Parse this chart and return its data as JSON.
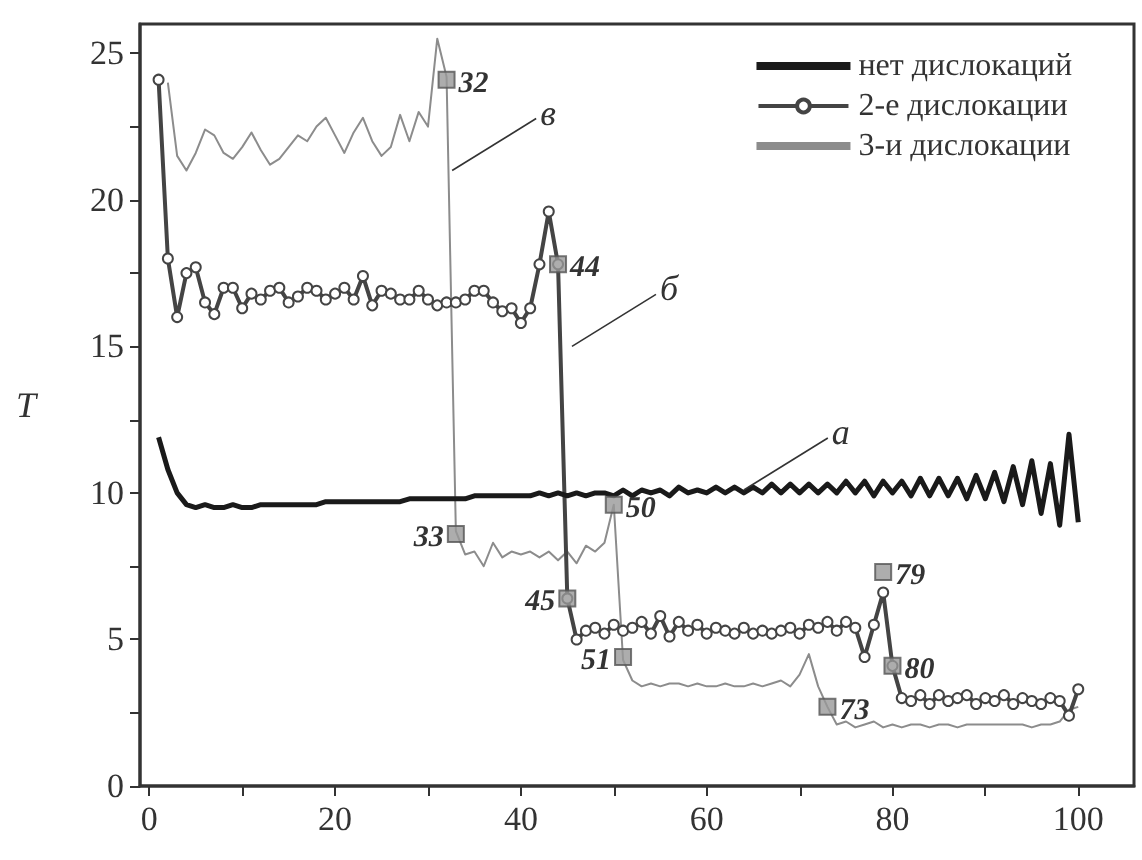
{
  "chart_data": {
    "type": "line",
    "ylabel": "T",
    "x": [
      1,
      2,
      3,
      4,
      5,
      6,
      7,
      8,
      9,
      10,
      11,
      12,
      13,
      14,
      15,
      16,
      17,
      18,
      19,
      20,
      21,
      22,
      23,
      24,
      25,
      26,
      27,
      28,
      29,
      30,
      31,
      32,
      33,
      34,
      35,
      36,
      37,
      38,
      39,
      40,
      41,
      42,
      43,
      44,
      45,
      46,
      47,
      48,
      49,
      50,
      51,
      52,
      53,
      54,
      55,
      56,
      57,
      58,
      59,
      60,
      61,
      62,
      63,
      64,
      65,
      66,
      67,
      68,
      69,
      70,
      71,
      72,
      73,
      74,
      75,
      76,
      77,
      78,
      79,
      80,
      81,
      82,
      83,
      84,
      85,
      86,
      87,
      88,
      89,
      90,
      91,
      92,
      93,
      94,
      95,
      96,
      97,
      98,
      99,
      100
    ],
    "xlim": [
      -1,
      106
    ],
    "ylim": [
      0,
      26
    ],
    "xticks": [
      0,
      {
        "value": 10,
        "label": null
      },
      20,
      {
        "value": 30,
        "label": null
      },
      40,
      {
        "value": 50,
        "label": null
      },
      60,
      {
        "value": 70,
        "label": null
      },
      80,
      {
        "value": 90,
        "label": null
      },
      100
    ],
    "yticks": [
      0,
      {
        "value": 2.5,
        "label": null
      },
      5,
      {
        "value": 7.5,
        "label": null
      },
      10,
      {
        "value": 12.5,
        "label": null
      },
      15,
      {
        "value": 17.5,
        "label": null
      },
      20,
      {
        "value": 22.5,
        "label": null
      },
      25
    ],
    "grid": false,
    "legend": "top right",
    "series": [
      {
        "name": "нет дислокаций",
        "color": "#1a1a1a",
        "marker": "none",
        "values": [
          11.9,
          10.8,
          10.0,
          9.6,
          9.5,
          9.6,
          9.5,
          9.5,
          9.6,
          9.5,
          9.5,
          9.6,
          9.6,
          9.6,
          9.6,
          9.6,
          9.6,
          9.6,
          9.7,
          9.7,
          9.7,
          9.7,
          9.7,
          9.7,
          9.7,
          9.7,
          9.7,
          9.8,
          9.8,
          9.8,
          9.8,
          9.8,
          9.8,
          9.8,
          9.9,
          9.9,
          9.9,
          9.9,
          9.9,
          9.9,
          9.9,
          10.0,
          9.9,
          10.0,
          9.9,
          10.0,
          9.9,
          10.0,
          10.0,
          9.9,
          10.1,
          9.9,
          10.1,
          10.0,
          10.1,
          9.9,
          10.2,
          10.0,
          10.1,
          10.0,
          10.2,
          10.0,
          10.2,
          10.0,
          10.2,
          10.0,
          10.3,
          10.0,
          10.3,
          10.0,
          10.3,
          10.0,
          10.3,
          10.0,
          10.4,
          10.0,
          10.4,
          9.9,
          10.4,
          10.0,
          10.4,
          9.9,
          10.5,
          9.9,
          10.5,
          9.9,
          10.5,
          9.8,
          10.6,
          9.8,
          10.7,
          9.7,
          10.9,
          9.6,
          11.1,
          9.3,
          11.0,
          8.9,
          12.0,
          9.0
        ]
      },
      {
        "name": "2-е дислокации",
        "color": "#444444",
        "marker": "circle",
        "values": [
          24.1,
          18.0,
          16.0,
          17.5,
          17.7,
          16.5,
          16.1,
          17.0,
          17.0,
          16.3,
          16.8,
          16.6,
          16.9,
          17.0,
          16.5,
          16.7,
          17.0,
          16.9,
          16.6,
          16.8,
          17.0,
          16.6,
          17.4,
          16.4,
          16.9,
          16.8,
          16.6,
          16.6,
          16.9,
          16.6,
          16.4,
          16.5,
          16.5,
          16.6,
          16.9,
          16.9,
          16.5,
          16.2,
          16.3,
          15.8,
          16.3,
          17.8,
          19.6,
          17.8,
          6.4,
          5.0,
          5.3,
          5.4,
          5.2,
          5.5,
          5.3,
          5.4,
          5.6,
          5.2,
          5.8,
          5.1,
          5.6,
          5.3,
          5.5,
          5.2,
          5.4,
          5.3,
          5.2,
          5.4,
          5.2,
          5.3,
          5.2,
          5.3,
          5.4,
          5.2,
          5.5,
          5.4,
          5.6,
          5.3,
          5.6,
          5.4,
          4.4,
          5.5,
          6.6,
          4.1,
          3.0,
          2.9,
          3.1,
          2.8,
          3.1,
          2.9,
          3.0,
          3.1,
          2.8,
          3.0,
          2.9,
          3.1,
          2.8,
          3.0,
          2.9,
          2.8,
          3.0,
          2.9,
          2.4,
          3.3
        ]
      },
      {
        "name": "3-и дислокации",
        "color": "#8c8c8c",
        "marker": "none",
        "values": [
          null,
          24.0,
          21.5,
          21.0,
          21.6,
          22.4,
          22.2,
          21.6,
          21.4,
          21.8,
          22.3,
          21.7,
          21.2,
          21.4,
          21.8,
          22.2,
          22.0,
          22.5,
          22.8,
          22.2,
          21.6,
          22.3,
          22.8,
          22.0,
          21.5,
          21.8,
          22.9,
          22.0,
          23.0,
          22.5,
          25.5,
          24.2,
          8.7,
          7.9,
          8.0,
          7.5,
          8.3,
          7.8,
          8.0,
          7.9,
          8.0,
          7.8,
          8.0,
          7.7,
          8.0,
          7.6,
          8.2,
          8.0,
          8.3,
          9.6,
          4.3,
          3.6,
          3.4,
          3.5,
          3.4,
          3.5,
          3.5,
          3.4,
          3.5,
          3.4,
          3.4,
          3.5,
          3.4,
          3.4,
          3.5,
          3.4,
          3.5,
          3.6,
          3.4,
          3.8,
          4.5,
          3.4,
          2.7,
          2.1,
          2.2,
          2.0,
          2.1,
          2.2,
          2.0,
          2.1,
          2.0,
          2.1,
          2.1,
          2.0,
          2.1,
          2.1,
          2.0,
          2.1,
          2.1,
          2.1,
          2.1,
          2.1,
          2.1,
          2.1,
          2.0,
          2.1,
          2.1,
          2.2,
          2.6,
          2.7
        ]
      },
      {
        "type": "scatter",
        "color": "#999999",
        "marker": "square",
        "x": [
          32,
          33,
          44,
          45,
          50,
          51,
          73,
          79,
          80
        ],
        "values": [
          24.1,
          8.6,
          17.8,
          6.4,
          9.6,
          4.4,
          2.7,
          7.3,
          4.1
        ]
      }
    ],
    "annotations": [
      {
        "text": "32",
        "x": 32,
        "y": 24.1
      },
      {
        "text": "33",
        "x": 33,
        "y": 8.6
      },
      {
        "text": "44",
        "x": 44,
        "y": 17.8
      },
      {
        "text": "45",
        "x": 45,
        "y": 6.4
      },
      {
        "text": "50",
        "x": 50,
        "y": 9.6
      },
      {
        "text": "51",
        "x": 51,
        "y": 4.4
      },
      {
        "text": "73",
        "x": 73,
        "y": 2.7
      },
      {
        "text": "79",
        "x": 79,
        "y": 7.3
      },
      {
        "text": "80",
        "x": 80,
        "y": 4.1
      },
      {
        "text": "а",
        "x": 64,
        "y": 10.1
      },
      {
        "text": "б",
        "x": 45.5,
        "y": 15.0
      },
      {
        "text": "в",
        "x": 32.6,
        "y": 21.0
      }
    ]
  }
}
